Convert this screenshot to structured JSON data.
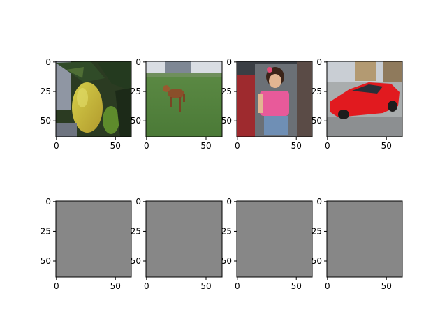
{
  "chart_data": {
    "type": "image-grid",
    "layout": {
      "rows": 2,
      "cols": 4
    },
    "panels": [
      {
        "row": 0,
        "col": 0,
        "content": "photo",
        "subject": "lemon-on-tree",
        "xlim": [
          -0.5,
          63.5
        ],
        "ylim": [
          63.5,
          -0.5
        ],
        "xticks": [
          0,
          50
        ],
        "yticks": [
          0,
          25,
          50
        ]
      },
      {
        "row": 0,
        "col": 1,
        "content": "photo",
        "subject": "dog-running-on-grass",
        "xlim": [
          -0.5,
          63.5
        ],
        "ylim": [
          63.5,
          -0.5
        ],
        "xticks": [
          0,
          50
        ],
        "yticks": [
          0,
          25,
          50
        ]
      },
      {
        "row": 0,
        "col": 2,
        "content": "photo",
        "subject": "child-in-stroller",
        "xlim": [
          -0.5,
          63.5
        ],
        "ylim": [
          63.5,
          -0.5
        ],
        "xticks": [
          0,
          50
        ],
        "yticks": [
          0,
          25,
          50
        ]
      },
      {
        "row": 0,
        "col": 3,
        "content": "photo",
        "subject": "red-sports-car",
        "xlim": [
          -0.5,
          63.5
        ],
        "ylim": [
          63.5,
          -0.5
        ],
        "xticks": [
          0,
          50
        ],
        "yticks": [
          0,
          25,
          50
        ]
      },
      {
        "row": 1,
        "col": 0,
        "content": "uniform",
        "fill": "#878787",
        "xlim": [
          -0.5,
          63.5
        ],
        "ylim": [
          63.5,
          -0.5
        ],
        "xticks": [
          0,
          50
        ],
        "yticks": [
          0,
          25,
          50
        ]
      },
      {
        "row": 1,
        "col": 1,
        "content": "uniform",
        "fill": "#878787",
        "xlim": [
          -0.5,
          63.5
        ],
        "ylim": [
          63.5,
          -0.5
        ],
        "xticks": [
          0,
          50
        ],
        "yticks": [
          0,
          25,
          50
        ]
      },
      {
        "row": 1,
        "col": 2,
        "content": "uniform",
        "fill": "#878787",
        "xlim": [
          -0.5,
          63.5
        ],
        "ylim": [
          63.5,
          -0.5
        ],
        "xticks": [
          0,
          50
        ],
        "yticks": [
          0,
          25,
          50
        ]
      },
      {
        "row": 1,
        "col": 3,
        "content": "uniform",
        "fill": "#878787",
        "xlim": [
          -0.5,
          63.5
        ],
        "ylim": [
          63.5,
          -0.5
        ],
        "xticks": [
          0,
          50
        ],
        "yticks": [
          0,
          25,
          50
        ]
      }
    ]
  }
}
